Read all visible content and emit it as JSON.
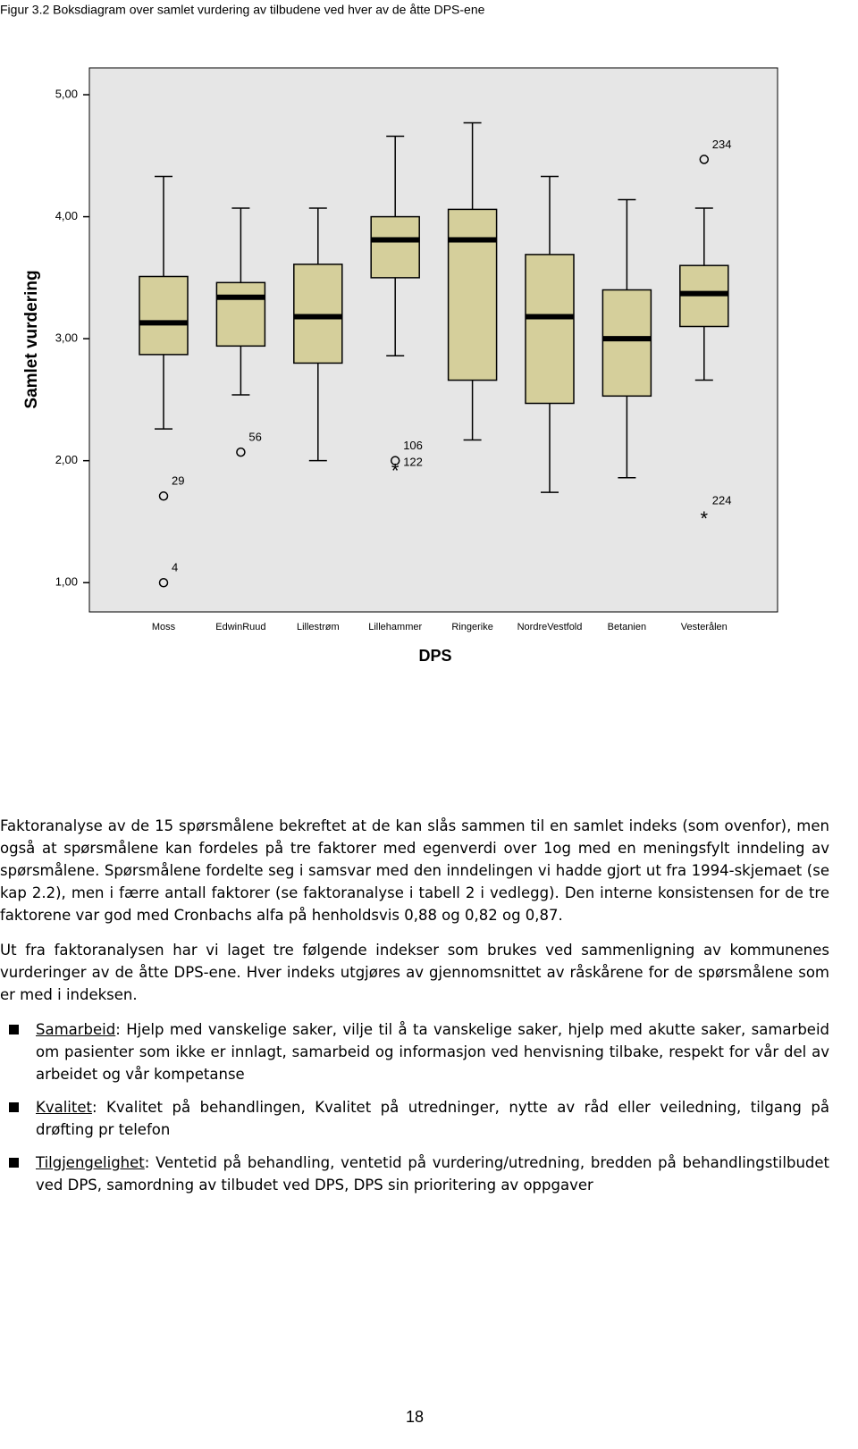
{
  "chart_data": {
    "type": "box",
    "title": "Figur 3.2 Boksdiagram over samlet vurdering av tilbudene ved hver av de åtte DPS-ene",
    "x_label": "DPS",
    "y_label": "Samlet vurdering",
    "categories": [
      "Moss",
      "EdwinRuud",
      "Lillestrøm",
      "Lillehammer",
      "Ringerike",
      "NordreVestfold",
      "Betanien",
      "Vesterålen"
    ],
    "boxes": [
      {
        "whisker_low": 2.26,
        "q1": 2.87,
        "median": 3.13,
        "q3": 3.51,
        "whisker_high": 4.33,
        "outliers": [
          {
            "value": 1.71,
            "label": "29",
            "kind": "outlier"
          },
          {
            "value": 1.0,
            "label": "4",
            "kind": "outlier"
          }
        ]
      },
      {
        "whisker_low": 2.54,
        "q1": 2.94,
        "median": 3.34,
        "q3": 3.46,
        "whisker_high": 4.07,
        "outliers": [
          {
            "value": 2.07,
            "label": "56",
            "kind": "outlier"
          }
        ]
      },
      {
        "whisker_low": 2.0,
        "q1": 2.8,
        "median": 3.18,
        "q3": 3.61,
        "whisker_high": 4.07,
        "outliers": []
      },
      {
        "whisker_low": 2.86,
        "q1": 3.5,
        "median": 3.81,
        "q3": 4.0,
        "whisker_high": 4.66,
        "outliers": [
          {
            "value": 2.0,
            "label": "106",
            "kind": "outlier"
          },
          {
            "value": 1.94,
            "label": "122",
            "kind": "extreme"
          }
        ]
      },
      {
        "whisker_low": 2.17,
        "q1": 2.66,
        "median": 3.81,
        "q3": 4.06,
        "whisker_high": 4.77,
        "outliers": []
      },
      {
        "whisker_low": 1.74,
        "q1": 2.47,
        "median": 3.18,
        "q3": 3.69,
        "whisker_high": 4.33,
        "outliers": []
      },
      {
        "whisker_low": 1.86,
        "q1": 2.53,
        "median": 3.0,
        "q3": 3.4,
        "whisker_high": 4.14,
        "outliers": []
      },
      {
        "whisker_low": 2.66,
        "q1": 3.1,
        "median": 3.37,
        "q3": 3.6,
        "whisker_high": 4.07,
        "outliers": [
          {
            "value": 4.47,
            "label": "234",
            "kind": "outlier"
          },
          {
            "value": 1.55,
            "label": "224",
            "kind": "extreme"
          }
        ]
      }
    ],
    "color": "#d5cf9b",
    "background": "#e6e6e6",
    "ylim": [
      0.76,
      5.22
    ],
    "yticks": [
      {
        "value": 1,
        "label": "1,00"
      },
      {
        "value": 2,
        "label": "2,00"
      },
      {
        "value": 3,
        "label": "3,00"
      },
      {
        "value": 4,
        "label": "4,00"
      },
      {
        "value": 5,
        "label": "5,00"
      }
    ]
  },
  "paragraphs": [
    "Faktoranalyse av de 15 spørsmålene bekreftet at de kan slås sammen til en samlet indeks (som ovenfor), men også at spørsmålene kan fordeles på tre faktorer med egenverdi over 1og med en meningsfylt inndeling av spørsmålene. Spørsmålene fordelte seg i samsvar med den inndelingen vi hadde gjort ut fra 1994-skjemaet (se kap 2.2), men i færre antall faktorer (se faktoranalyse i tabell 2 i vedlegg). Den interne konsistensen for de tre faktorene var god med Cronbachs alfa på henholdsvis 0,88 og 0,82 og 0,87.",
    "Ut fra faktoranalysen har vi laget tre følgende indekser som brukes ved sammenligning av kommunenes vurderinger av de åtte DPS-ene. Hver indeks utgjøres av gjennomsnittet av råskårene for de spørsmålene som er med i indeksen."
  ],
  "bullets": [
    {
      "term": "Samarbeid",
      "text": ": Hjelp med vanskelige saker, vilje til å ta vanskelige saker, hjelp med akutte saker, samarbeid om pasienter som ikke er innlagt, samarbeid og informasjon ved henvisning tilbake, respekt for vår del av arbeidet og vår kompetanse"
    },
    {
      "term": "Kvalitet",
      "text": ": Kvalitet på behandlingen, Kvalitet på utredninger, nytte av råd eller veiledning, tilgang på drøfting pr telefon"
    },
    {
      "term": "Tilgjengelighet",
      "text": ": Ventetid på behandling, ventetid på vurdering/utredning, bredden på behandlingstilbudet ved DPS, samordning av tilbudet ved DPS, DPS sin prioritering av oppgaver"
    }
  ],
  "page_number": "18"
}
